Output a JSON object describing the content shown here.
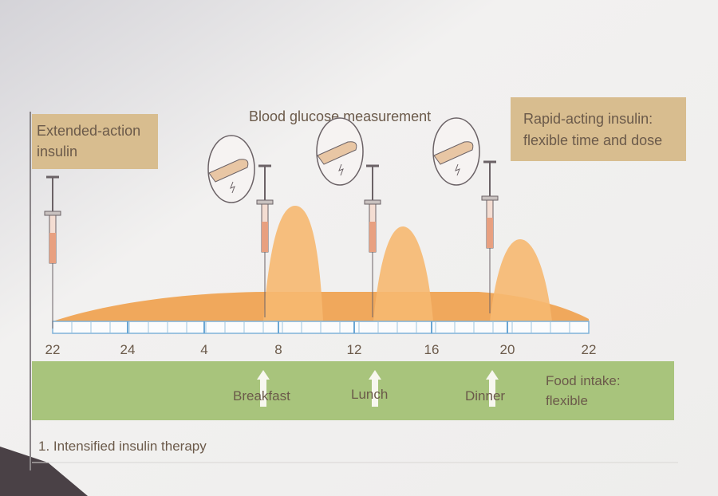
{
  "diagram": {
    "caption": "1. Intensified insulin therapy",
    "extended_label_line1": "Extended-action",
    "extended_label_line2": "insulin",
    "glucose_label": "Blood glucose measurement",
    "rapid_label_line1": "Rapid-acting insulin:",
    "rapid_label_line2": "flexible time and dose",
    "time_ticks": [
      "22",
      "24",
      "4",
      "8",
      "12",
      "16",
      "20",
      "22"
    ],
    "meals": [
      "Breakfast",
      "Lunch",
      "Dinner"
    ],
    "food_label_line1": "Food intake:",
    "food_label_line2": "flexible",
    "colors": {
      "label_box": "#d8bd8f",
      "insulin_curve": "#f2b266",
      "food_band": "#a8c47c",
      "axis": "#7fb2d8"
    }
  }
}
